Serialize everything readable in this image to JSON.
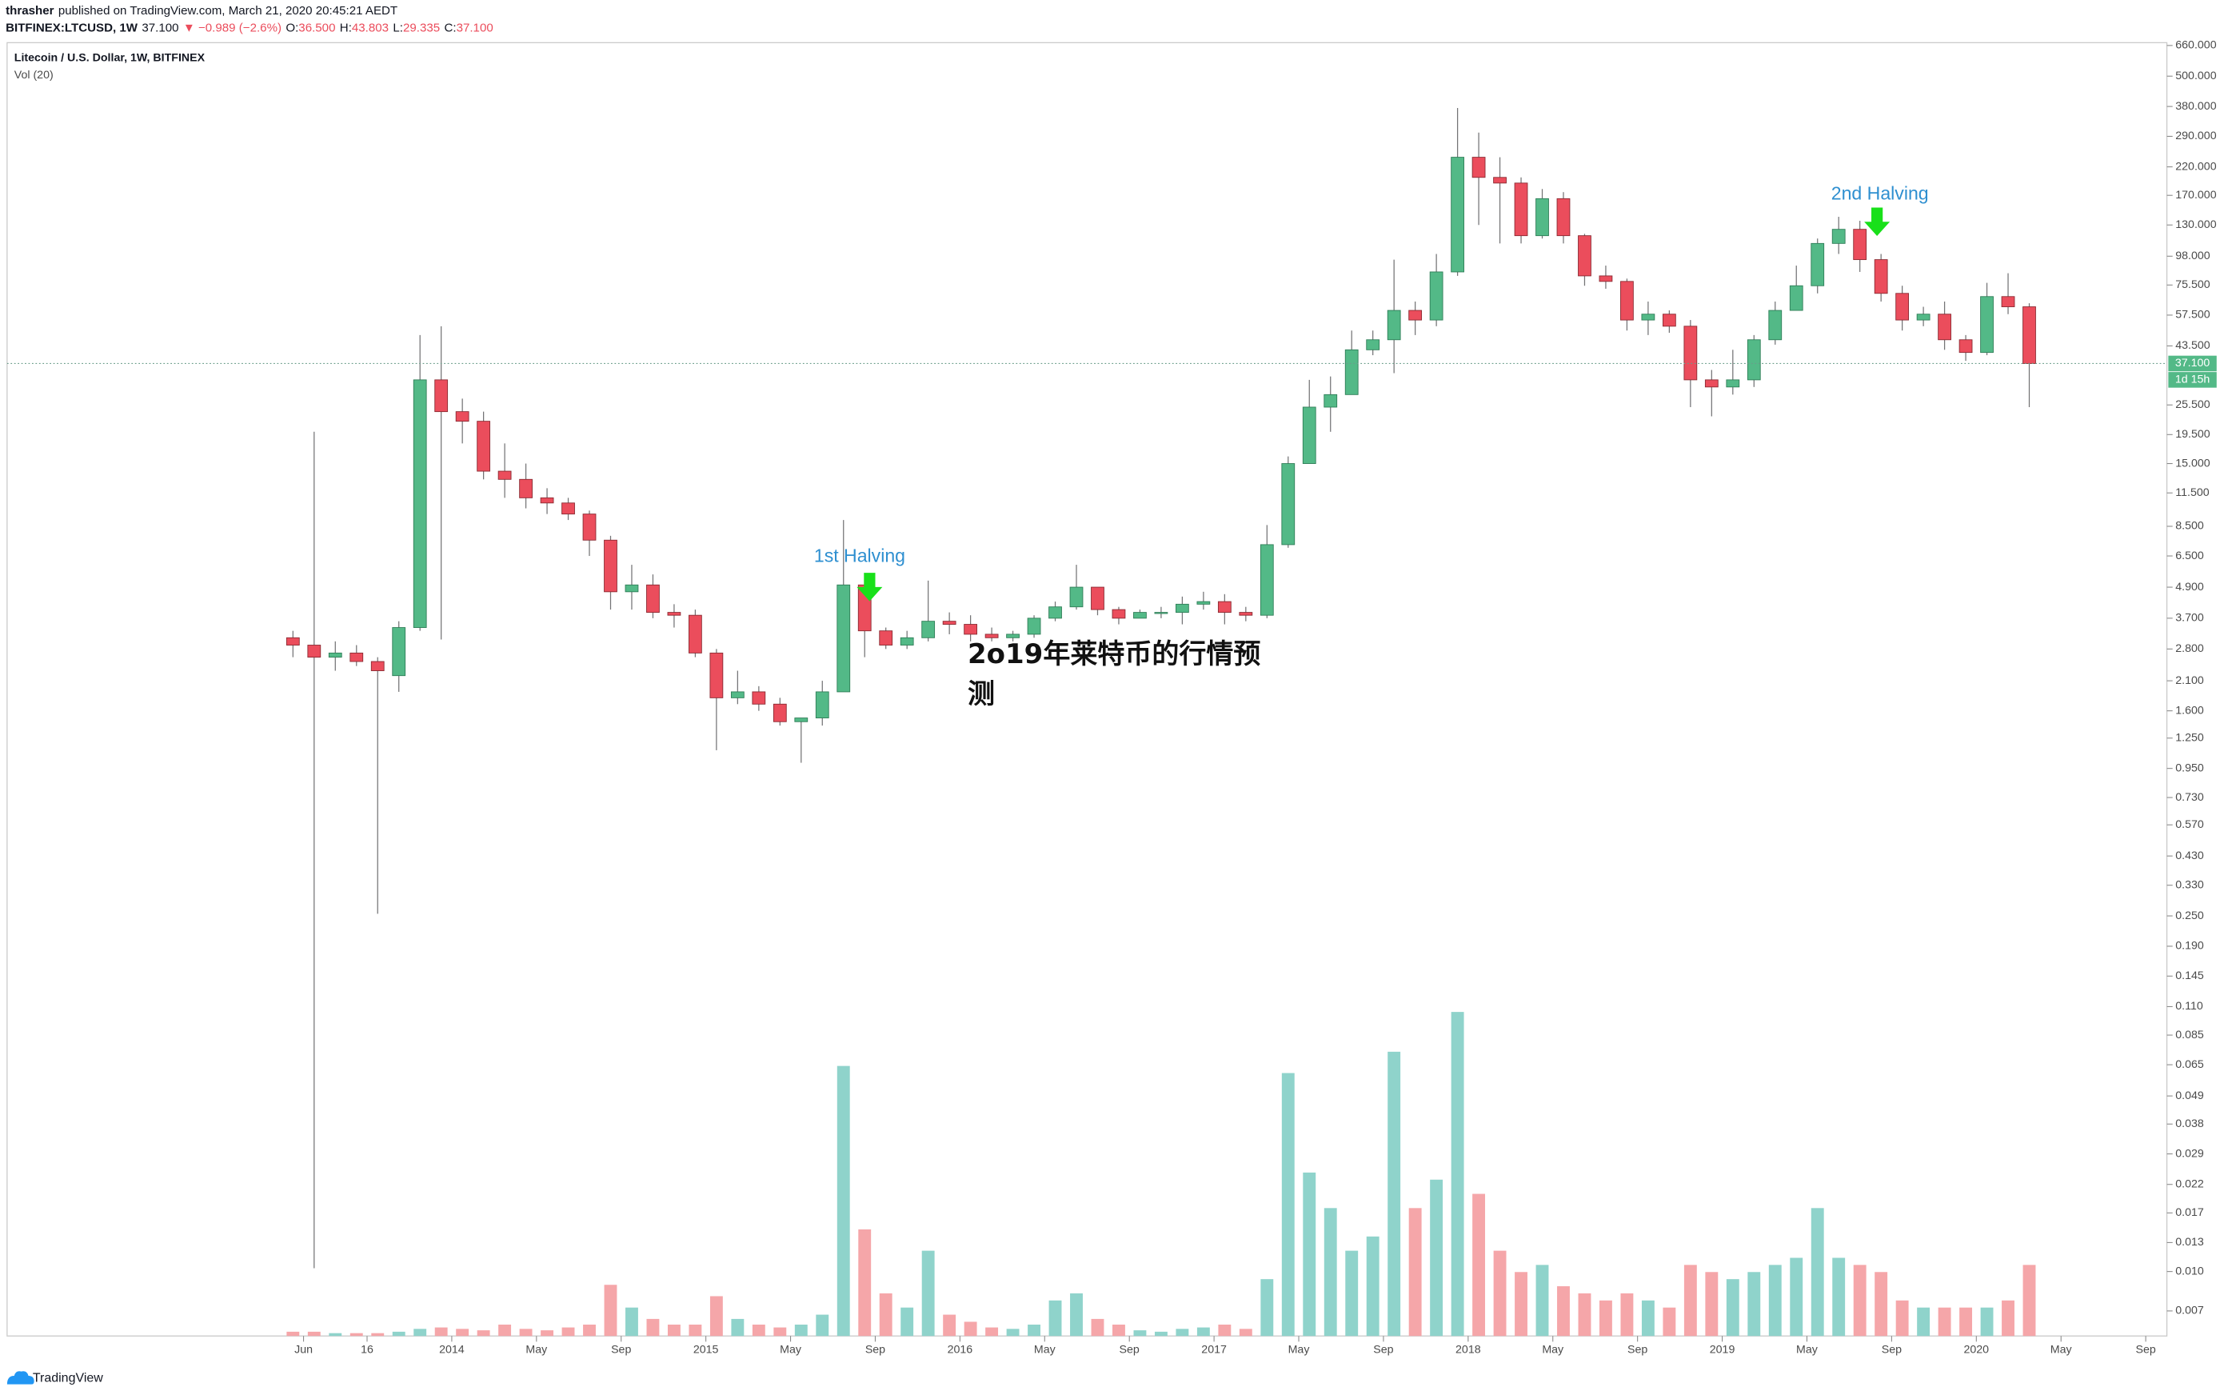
{
  "header": {
    "publisher": "thrasher",
    "published": "published on TradingView.com, March 21, 2020 20:45:21 AEDT",
    "symbol": "BITFINEX:LTCUSD, 1W",
    "last": "37.100",
    "change": "▼ −0.989 (−2.6%)",
    "ohlc": [
      {
        "label": "O:",
        "value": "36.500"
      },
      {
        "label": "H:",
        "value": "43.803"
      },
      {
        "label": "L:",
        "value": "29.335"
      },
      {
        "label": "C:",
        "value": "37.100"
      }
    ],
    "legend_title": "Litecoin / U.S. Dollar, 1W, BITFINEX",
    "volume_legend": "Vol (20)"
  },
  "overlay_text": "2o19年莱特币的行情预测",
  "footer": "TradingView",
  "chart_data": {
    "type": "candlestick",
    "yscale": "log",
    "grid": false,
    "up_color": "#53b987",
    "down_color": "#eb4d5c",
    "volume_up_color": "#8fd3cb",
    "volume_down_color": "#f5a6a9",
    "annotations": [
      "1st Halving",
      "2nd Halving"
    ],
    "last_price": {
      "value": 37.1,
      "label": "37.100"
    },
    "countdown": "1d 15h",
    "xlim": [
      "2012-04",
      "2020-10"
    ],
    "xticks": [
      {
        "value": "2013-06",
        "label": "Jun"
      },
      {
        "value": "2013-09",
        "label": "16"
      },
      {
        "value": "2014-01",
        "label": "2014"
      },
      {
        "value": "2014-05",
        "label": "May"
      },
      {
        "value": "2014-09",
        "label": "Sep"
      },
      {
        "value": "2015-01",
        "label": "2015"
      },
      {
        "value": "2015-05",
        "label": "May"
      },
      {
        "value": "2015-09",
        "label": "Sep"
      },
      {
        "value": "2016-01",
        "label": "2016"
      },
      {
        "value": "2016-05",
        "label": "May"
      },
      {
        "value": "2016-09",
        "label": "Sep"
      },
      {
        "value": "2017-01",
        "label": "2017"
      },
      {
        "value": "2017-05",
        "label": "May"
      },
      {
        "value": "2017-09",
        "label": "Sep"
      },
      {
        "value": "2018-01",
        "label": "2018"
      },
      {
        "value": "2018-05",
        "label": "May"
      },
      {
        "value": "2018-09",
        "label": "Sep"
      },
      {
        "value": "2019-01",
        "label": "2019"
      },
      {
        "value": "2019-05",
        "label": "May"
      },
      {
        "value": "2019-09",
        "label": "Sep"
      },
      {
        "value": "2020-01",
        "label": "2020"
      },
      {
        "value": "2020-05",
        "label": "May"
      },
      {
        "value": "2020-09",
        "label": "Sep"
      }
    ],
    "ylim": [
      0.00558,
      677
    ],
    "yticks": [
      {
        "value": 660,
        "label": "660.000"
      },
      {
        "value": 500,
        "label": "500.000"
      },
      {
        "value": 380,
        "label": "380.000"
      },
      {
        "value": 290,
        "label": "290.000"
      },
      {
        "value": 220,
        "label": "220.000"
      },
      {
        "value": 170,
        "label": "170.000"
      },
      {
        "value": 130,
        "label": "130.000"
      },
      {
        "value": 98,
        "label": "98.000"
      },
      {
        "value": 75.5,
        "label": "75.500"
      },
      {
        "value": 57.5,
        "label": "57.500"
      },
      {
        "value": 43.5,
        "label": "43.500"
      },
      {
        "value": 25.5,
        "label": "25.500"
      },
      {
        "value": 19.5,
        "label": "19.500"
      },
      {
        "value": 15,
        "label": "15.000"
      },
      {
        "value": 11.5,
        "label": "11.500"
      },
      {
        "value": 8.5,
        "label": "8.500"
      },
      {
        "value": 6.5,
        "label": "6.500"
      },
      {
        "value": 4.9,
        "label": "4.900"
      },
      {
        "value": 3.7,
        "label": "3.700"
      },
      {
        "value": 2.8,
        "label": "2.800"
      },
      {
        "value": 2.1,
        "label": "2.100"
      },
      {
        "value": 1.6,
        "label": "1.600"
      },
      {
        "value": 1.25,
        "label": "1.250"
      },
      {
        "value": 0.95,
        "label": "0.950"
      },
      {
        "value": 0.73,
        "label": "0.730"
      },
      {
        "value": 0.57,
        "label": "0.570"
      },
      {
        "value": 0.43,
        "label": "0.430"
      },
      {
        "value": 0.33,
        "label": "0.330"
      },
      {
        "value": 0.25,
        "label": "0.250"
      },
      {
        "value": 0.19,
        "label": "0.190"
      },
      {
        "value": 0.145,
        "label": "0.145"
      },
      {
        "value": 0.11,
        "label": "0.110"
      },
      {
        "value": 0.085,
        "label": "0.085"
      },
      {
        "value": 0.065,
        "label": "0.065"
      },
      {
        "value": 0.049,
        "label": "0.049"
      },
      {
        "value": 0.038,
        "label": "0.038"
      },
      {
        "value": 0.029,
        "label": "0.029"
      },
      {
        "value": 0.022,
        "label": "0.022"
      },
      {
        "value": 0.017,
        "label": "0.017"
      },
      {
        "value": 0.013,
        "label": "0.013"
      },
      {
        "value": 0.01,
        "label": "0.010"
      },
      {
        "value": 0.007,
        "label": "0.007"
      }
    ],
    "x": [
      "2013-05",
      "2013-06",
      "2013-07",
      "2013-08",
      "2013-09",
      "2013-10",
      "2013-11",
      "2013-12",
      "2014-01",
      "2014-02",
      "2014-03",
      "2014-04",
      "2014-05",
      "2014-06",
      "2014-07",
      "2014-08",
      "2014-09",
      "2014-10",
      "2014-11",
      "2014-12",
      "2015-01",
      "2015-02",
      "2015-03",
      "2015-04",
      "2015-05",
      "2015-06",
      "2015-07",
      "2015-08",
      "2015-09",
      "2015-10",
      "2015-11",
      "2015-12",
      "2016-01",
      "2016-02",
      "2016-03",
      "2016-04",
      "2016-05",
      "2016-06",
      "2016-07",
      "2016-08",
      "2016-09",
      "2016-10",
      "2016-11",
      "2016-12",
      "2017-01",
      "2017-02",
      "2017-03",
      "2017-04",
      "2017-05",
      "2017-06",
      "2017-07",
      "2017-08",
      "2017-09",
      "2017-10",
      "2017-11",
      "2017-12",
      "2018-01",
      "2018-02",
      "2018-03",
      "2018-04",
      "2018-05",
      "2018-06",
      "2018-07",
      "2018-08",
      "2018-09",
      "2018-10",
      "2018-11",
      "2018-12",
      "2019-01",
      "2019-02",
      "2019-03",
      "2019-04",
      "2019-05",
      "2019-06",
      "2019-07",
      "2019-08",
      "2019-09",
      "2019-10",
      "2019-11",
      "2019-12",
      "2020-01",
      "2020-02",
      "2020-03"
    ],
    "open": [
      3.1,
      2.9,
      2.6,
      2.7,
      2.5,
      2.2,
      3.4,
      32,
      24,
      22,
      14,
      13,
      11,
      10.5,
      9.5,
      7.5,
      4.7,
      5,
      3.9,
      3.8,
      2.7,
      1.8,
      1.9,
      1.7,
      1.45,
      1.5,
      1.9,
      5,
      3.3,
      2.9,
      3.1,
      3.6,
      3.5,
      3.2,
      3.1,
      3.2,
      3.7,
      4.1,
      4.9,
      4,
      3.7,
      3.9,
      3.9,
      4.2,
      4.3,
      3.9,
      3.8,
      7.2,
      15,
      25,
      28,
      42,
      46,
      60,
      55,
      85,
      240,
      200,
      190,
      118,
      165,
      118,
      82,
      78,
      55,
      58,
      52,
      32,
      30,
      32,
      46,
      60,
      75,
      110,
      125,
      95,
      70,
      55,
      58,
      46,
      41,
      68,
      62
    ],
    "high": [
      3.3,
      20,
      3.0,
      2.9,
      2.6,
      3.6,
      48,
      52,
      27,
      24,
      18,
      15,
      12,
      11,
      9.8,
      7.8,
      6,
      5.5,
      4.2,
      4,
      2.8,
      2.3,
      2,
      1.8,
      1.5,
      2.1,
      9,
      5.3,
      3.4,
      3.3,
      5.2,
      3.9,
      3.8,
      3.4,
      3.3,
      3.8,
      4.3,
      6,
      4.9,
      4.1,
      4,
      4.1,
      4.5,
      4.7,
      4.6,
      4.1,
      8.6,
      16,
      32,
      33,
      50,
      50,
      95,
      65,
      100,
      375,
      300,
      240,
      200,
      180,
      175,
      120,
      90,
      80,
      65,
      60,
      55,
      35,
      42,
      48,
      65,
      90,
      115,
      140,
      135,
      100,
      75,
      62,
      65,
      48,
      77,
      84,
      64
    ],
    "low": [
      2.6,
      0.0103,
      2.3,
      2.4,
      0.255,
      1.9,
      3.3,
      3.05,
      18,
      13,
      11,
      10,
      9.5,
      9,
      6.5,
      4,
      4,
      3.7,
      3.4,
      2.6,
      1.12,
      1.7,
      1.6,
      1.4,
      1,
      1.4,
      1.9,
      2.6,
      2.8,
      2.8,
      3,
      3.2,
      3,
      3,
      3,
      3.1,
      3.6,
      4,
      3.8,
      3.5,
      3.7,
      3.7,
      3.5,
      4,
      3.5,
      3.6,
      3.7,
      7,
      15,
      20,
      28,
      40,
      34,
      48,
      52,
      82,
      130,
      110,
      110,
      115,
      110,
      75,
      73,
      50,
      48,
      49,
      25,
      23,
      28,
      30,
      44,
      60,
      70,
      100,
      85,
      65,
      50,
      52,
      42,
      38,
      40,
      58,
      25
    ],
    "close": [
      2.9,
      2.6,
      2.7,
      2.5,
      2.3,
      3.4,
      32,
      24,
      22,
      14,
      13,
      11,
      10.5,
      9.5,
      7.5,
      4.7,
      5,
      3.9,
      3.8,
      2.7,
      1.8,
      1.9,
      1.7,
      1.45,
      1.5,
      1.9,
      5,
      3.3,
      2.9,
      3.1,
      3.6,
      3.5,
      3.2,
      3.1,
      3.2,
      3.7,
      4.1,
      4.9,
      4,
      3.7,
      3.9,
      3.9,
      4.2,
      4.3,
      3.9,
      3.8,
      7.2,
      15,
      25,
      28,
      42,
      46,
      60,
      55,
      85,
      240,
      200,
      190,
      118,
      165,
      118,
      82,
      78,
      55,
      58,
      52,
      32,
      30,
      32,
      46,
      60,
      75,
      110,
      125,
      95,
      70,
      55,
      58,
      46,
      41,
      68,
      62,
      37.1
    ],
    "volume": [
      3,
      3,
      2,
      2,
      2,
      3,
      5,
      6,
      5,
      4,
      8,
      5,
      4,
      6,
      8,
      36,
      20,
      12,
      8,
      8,
      28,
      12,
      8,
      6,
      8,
      15,
      190,
      75,
      30,
      20,
      60,
      15,
      10,
      6,
      5,
      8,
      25,
      30,
      12,
      8,
      4,
      3,
      5,
      6,
      8,
      5,
      40,
      185,
      115,
      90,
      60,
      70,
      200,
      90,
      110,
      228,
      100,
      60,
      45,
      50,
      35,
      30,
      25,
      30,
      25,
      20,
      50,
      45,
      40,
      45,
      50,
      55,
      90,
      55,
      50,
      45,
      25,
      20,
      20,
      20,
      20,
      25,
      50
    ]
  }
}
